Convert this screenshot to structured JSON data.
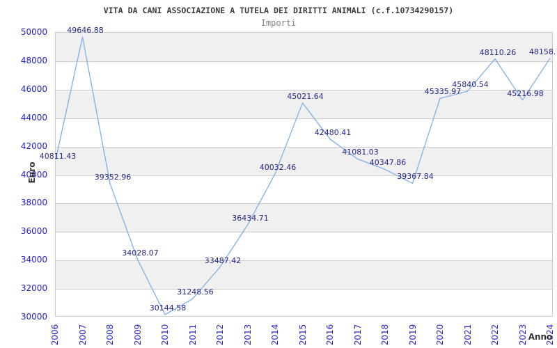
{
  "chart": {
    "title": "VITA DA CANI ASSOCIAZIONE A TUTELA DEI DIRITTI ANIMALI (c.f.10734290157)",
    "subtitle": "Importi"
  },
  "chart_data": {
    "type": "line",
    "title": "VITA DA CANI ASSOCIAZIONE A TUTELA DEI DIRITTI ANIMALI (c.f.10734290157)",
    "subtitle": "Importi",
    "xlabel": "Anno",
    "ylabel": "Euro",
    "categories": [
      "2006",
      "2007",
      "2008",
      "2009",
      "2010",
      "2011",
      "2012",
      "2013",
      "2014",
      "2015",
      "2016",
      "2017",
      "2018",
      "2019",
      "2020",
      "2021",
      "2022",
      "2023",
      "2024"
    ],
    "series": [
      {
        "name": "Importi",
        "values": [
          40811.43,
          49646.88,
          39352.96,
          34028.07,
          30144.58,
          31248.56,
          33487.42,
          36434.71,
          40032.46,
          45021.64,
          42480.41,
          41081.03,
          40347.86,
          39367.84,
          45335.97,
          45840.54,
          48110.26,
          45216.98,
          48158
        ]
      }
    ],
    "point_labels": [
      "40811.43",
      "49646.88",
      "39352.96",
      "34028.07",
      "30144.58",
      "31248.56",
      "33487.42",
      "36434.71",
      "40032.46",
      "45021.64",
      "42480.41",
      "41081.03",
      "40347.86",
      "39367.84",
      "45335.97",
      "45840.54",
      "48110.26",
      "45216.98",
      "48158."
    ],
    "ylim": [
      30000,
      50000
    ],
    "yticks": [
      30000,
      32000,
      34000,
      36000,
      38000,
      40000,
      42000,
      44000,
      46000,
      48000,
      50000
    ],
    "grid": "horizontal gridlines with alternating shaded bands",
    "legend_position": "none",
    "colors": {
      "line": "#7fafe8",
      "point_label": "#23238c",
      "tick_label": "#2323cc",
      "title": "#3c3c3c",
      "subtitle": "#7f7f7f",
      "band": "#f0f0f0",
      "gridline": "#cccccc",
      "plot_border": "#c8c8c8",
      "axis_title": "#333333",
      "background": "#ffffff"
    }
  }
}
